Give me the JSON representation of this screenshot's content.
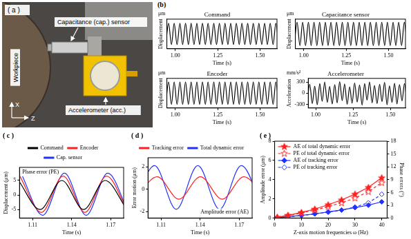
{
  "diagram": {
    "label": "( a )",
    "texts": {
      "sensor": "Capacitance (cap.) sensor",
      "workpiece": "Workpiece",
      "accelerometer": "Accelerometer (acc.)",
      "x_axis": "X",
      "z_axis": "Z"
    }
  },
  "panel_b_label": "(b)",
  "chart_data": [
    {
      "type": "line",
      "title": "Command",
      "y_unit": "μm",
      "y_label": "Displacement",
      "x_label": "Time (s)",
      "xlim": [
        0.95,
        1.6
      ],
      "xticks": [
        {
          "value": 1,
          "label": "1.00"
        },
        1.25,
        {
          "value": 1.5,
          "label": "1.50"
        }
      ],
      "ylim": [
        -7,
        7
      ],
      "tick_labels": "x",
      "grid": false,
      "x": [
        0.943,
        0.96,
        0.977,
        0.993,
        1.01,
        1.027,
        1.043,
        1.06,
        1.077,
        1.093,
        1.11,
        1.127,
        1.143,
        1.16,
        1.177,
        1.193,
        1.21,
        1.227,
        1.243,
        1.26,
        1.277,
        1.293,
        1.31,
        1.327,
        1.343,
        1.36,
        1.377,
        1.393,
        1.41,
        1.427,
        1.443,
        1.46,
        1.477,
        1.493,
        1.51,
        1.527,
        1.543,
        1.56,
        1.577,
        1.593,
        1.61
      ],
      "series": [
        {
          "name": "Command",
          "color": "#000000",
          "values": [
            -5,
            5,
            -5,
            5,
            -5,
            5,
            -5,
            5,
            -5,
            5,
            -5,
            5,
            -5,
            5,
            -5,
            5,
            -5,
            5,
            -5,
            5,
            -5,
            5,
            -5,
            5,
            -5,
            5,
            -5,
            5,
            -5,
            5,
            -5,
            5,
            -5,
            5,
            -5,
            5,
            -5,
            5,
            -5,
            5,
            -5
          ]
        }
      ]
    },
    {
      "type": "line",
      "title": "Capacitance sensor",
      "y_unit": "μm",
      "y_label": "Displacement",
      "x_label": "Time (s)",
      "xlim": [
        0.95,
        1.6
      ],
      "xticks": [
        {
          "value": 1,
          "label": "1.00"
        },
        1.25,
        {
          "value": 1.5,
          "label": "1.50"
        }
      ],
      "ylim": [
        -7,
        7
      ],
      "tick_labels": "x",
      "grid": false,
      "x": [
        0.943,
        0.96,
        0.977,
        0.993,
        1.01,
        1.027,
        1.043,
        1.06,
        1.077,
        1.093,
        1.11,
        1.127,
        1.143,
        1.16,
        1.177,
        1.193,
        1.21,
        1.227,
        1.243,
        1.26,
        1.277,
        1.293,
        1.31,
        1.327,
        1.343,
        1.36,
        1.377,
        1.393,
        1.41,
        1.427,
        1.443,
        1.46,
        1.477,
        1.493,
        1.51,
        1.527,
        1.543,
        1.56,
        1.577,
        1.593,
        1.61
      ],
      "series": [
        {
          "name": "Capacitance sensor",
          "color": "#000000",
          "values": [
            -5.5,
            5.5,
            -5.5,
            5.5,
            -5.5,
            5.5,
            -5.5,
            5.5,
            -5.5,
            5.5,
            -5.5,
            5.5,
            -5.5,
            5.5,
            -5.5,
            5.5,
            -5.5,
            5.5,
            -5.5,
            5.5,
            -5.5,
            5.5,
            -5.5,
            5.5,
            -5.5,
            5.5,
            -5.5,
            5.5,
            -5.5,
            5.5,
            -5.5,
            5.5,
            -5.5,
            5.5,
            -5.5,
            5.5,
            -5.5,
            5.5,
            -5.5,
            5.5,
            -5.5
          ]
        }
      ]
    },
    {
      "type": "line",
      "title": "Encoder",
      "y_unit": "μm",
      "y_label": "Displacement",
      "x_label": "Time (s)",
      "xlim": [
        0.95,
        1.6
      ],
      "xticks": [
        {
          "value": 1,
          "label": "1.00"
        },
        1.25,
        {
          "value": 1.5,
          "label": "1.50"
        }
      ],
      "ylim": [
        -7,
        7
      ],
      "tick_labels": "x",
      "grid": false,
      "x": [
        0.943,
        0.96,
        0.977,
        0.993,
        1.01,
        1.027,
        1.043,
        1.06,
        1.077,
        1.093,
        1.11,
        1.127,
        1.143,
        1.16,
        1.177,
        1.193,
        1.21,
        1.227,
        1.243,
        1.26,
        1.277,
        1.293,
        1.31,
        1.327,
        1.343,
        1.36,
        1.377,
        1.393,
        1.41,
        1.427,
        1.443,
        1.46,
        1.477,
        1.493,
        1.51,
        1.527,
        1.543,
        1.56,
        1.577,
        1.593,
        1.61
      ],
      "series": [
        {
          "name": "Encoder",
          "color": "#000000",
          "values": [
            -5.3,
            5.3,
            -5.3,
            5.3,
            -5.3,
            5.3,
            -5.3,
            5.3,
            -5.3,
            5.3,
            -5.3,
            5.3,
            -5.3,
            5.3,
            -5.3,
            5.3,
            -5.3,
            5.3,
            -5.3,
            5.3,
            -5.3,
            5.3,
            -5.3,
            5.3,
            -5.3,
            5.3,
            -5.3,
            5.3,
            -5.3,
            5.3,
            -5.3,
            5.3,
            -5.3,
            5.3,
            -5.3,
            5.3,
            -5.3,
            5.3,
            -5.3,
            5.3,
            -5.3
          ]
        }
      ]
    },
    {
      "type": "line",
      "title": "Accelerometer",
      "y_unit": "mm/s²",
      "y_label": "Acceleration",
      "x_label": "Time (s)",
      "xlim": [
        0.95,
        1.6
      ],
      "xticks": [
        {
          "value": 1,
          "label": "1.00"
        },
        1.25,
        {
          "value": 1.5,
          "label": "1.50"
        }
      ],
      "ylim": [
        -400,
        400
      ],
      "yticks": [
        -300,
        0,
        300
      ],
      "grid": false,
      "x": [
        0.943,
        0.96,
        0.977,
        0.993,
        1.01,
        1.027,
        1.043,
        1.06,
        1.077,
        1.093,
        1.11,
        1.127,
        1.143,
        1.16,
        1.177,
        1.193,
        1.21,
        1.227,
        1.243,
        1.26,
        1.277,
        1.293,
        1.31,
        1.327,
        1.343,
        1.36,
        1.377,
        1.393,
        1.41,
        1.427,
        1.443,
        1.46,
        1.477,
        1.493,
        1.51,
        1.527,
        1.543,
        1.56,
        1.577,
        1.593,
        1.61
      ],
      "series": [
        {
          "name": "Accelerometer",
          "color": "#000000",
          "values": [
            -230,
            240,
            -280,
            190,
            -310,
            260,
            -220,
            300,
            -250,
            180,
            -290,
            230,
            -260,
            310,
            -200,
            250,
            -300,
            170,
            -270,
            280,
            -240,
            220,
            -320,
            260,
            -190,
            300,
            -260,
            210,
            -280,
            240,
            -230,
            290,
            -310,
            200,
            -250,
            270,
            -290,
            230,
            -210,
            260,
            -270
          ]
        }
      ]
    },
    {
      "type": "line",
      "label": "( c )",
      "x_label": "Time (s)",
      "y_label": "Displacement (μm)",
      "xlim": [
        1.1,
        1.18
      ],
      "xticks": [
        1.11,
        1.14,
        1.17
      ],
      "ylim": [
        -8,
        9.5
      ],
      "yticks": [
        -5,
        0,
        5
      ],
      "grid": false,
      "legend": "top",
      "annotations": [
        "Phase error (PE)"
      ],
      "series": [
        {
          "name": "Command",
          "color": "#000000",
          "x": [
            1.0992,
            1.1158,
            1.1325,
            1.1492,
            1.1658,
            1.1825
          ],
          "values": [
            5,
            -5,
            5,
            -5,
            5,
            -5
          ]
        },
        {
          "name": "Encoder",
          "color": "#ff2020",
          "x": [
            1.1002,
            1.1168,
            1.1335,
            1.1502,
            1.1668,
            1.1835
          ],
          "values": [
            6.5,
            -6,
            6.5,
            -6,
            6.5,
            -6
          ]
        },
        {
          "name": "Cap. sensor",
          "color": "#2030ff",
          "x": [
            1.1012,
            1.1178,
            1.1345,
            1.1512,
            1.1678,
            1.1845
          ],
          "values": [
            7.5,
            -7,
            7.5,
            -7,
            7.5,
            -7
          ]
        }
      ]
    },
    {
      "type": "line",
      "label": "( d )",
      "x_label": "Time (s)",
      "y_label": "Error motion (μm)",
      "xlim": [
        1.1,
        1.18
      ],
      "xticks": [
        1.11,
        1.14,
        1.17
      ],
      "ylim": [
        -2.6,
        2.8
      ],
      "yticks": [
        -2,
        0,
        2
      ],
      "grid": false,
      "legend": "top",
      "annotations": [
        "Amplitude error (AE)"
      ],
      "series": [
        {
          "name": "Tracking error",
          "color": "#ff2020",
          "x": [
            1.0903,
            1.107,
            1.1237,
            1.1403,
            1.157,
            1.1737,
            1.1903
          ],
          "values": [
            -0.9,
            1.1,
            -0.9,
            1.1,
            -0.9,
            1.1,
            -0.9
          ]
        },
        {
          "name": "Total dynamic error",
          "color": "#2030ff",
          "x": [
            1.0883,
            1.105,
            1.1217,
            1.1383,
            1.155,
            1.1717,
            1.1883
          ],
          "values": [
            -1.8,
            2.1,
            -1.8,
            2.1,
            -1.8,
            2.1,
            -1.8
          ]
        }
      ]
    },
    {
      "type": "line",
      "label": "( e )",
      "x_label": "Z-axis motion frequencies ω (Hz)",
      "y_label": "Amplitude error (μm)",
      "y2_label": "Phase errors (°)",
      "xlim": [
        0,
        42
      ],
      "xticks": [
        0,
        10,
        20,
        30,
        40
      ],
      "ylim": [
        0,
        8
      ],
      "yticks": [
        0,
        2,
        4,
        6,
        8
      ],
      "y2lim": [
        0,
        18
      ],
      "y2ticks": [
        0,
        3,
        6,
        9,
        12,
        15,
        18
      ],
      "grid": false,
      "legend": "top-left",
      "x": [
        1,
        5,
        10,
        15,
        20,
        25,
        30,
        35,
        40
      ],
      "series": [
        {
          "name": "AE of total dynamic error",
          "color": "#ff2020",
          "marker": "star",
          "line_style": "solid",
          "values": [
            0.1,
            0.3,
            0.6,
            0.95,
            1.4,
            1.9,
            2.5,
            3.2,
            4.2
          ]
        },
        {
          "name": "PE of total dynamic error",
          "color": "#ff2020",
          "marker": "open_star",
          "line_style": "dashed",
          "axis": "y2",
          "values": [
            0.2,
            0.6,
            1.2,
            1.9,
            2.7,
            3.6,
            4.7,
            6.2,
            8.3
          ]
        },
        {
          "name": "AE of tracking error",
          "color": "#2030ff",
          "marker": "diamond",
          "line_style": "solid",
          "values": [
            0.05,
            0.15,
            0.3,
            0.45,
            0.65,
            0.85,
            1.1,
            1.35,
            1.7
          ]
        },
        {
          "name": "PE of tracking error",
          "color": "#2030ff",
          "marker": "open_diamond",
          "line_style": "dashed",
          "axis": "y2",
          "values": [
            0.1,
            0.3,
            0.6,
            1.0,
            1.4,
            1.9,
            2.6,
            3.6,
            5.6
          ]
        }
      ]
    }
  ]
}
